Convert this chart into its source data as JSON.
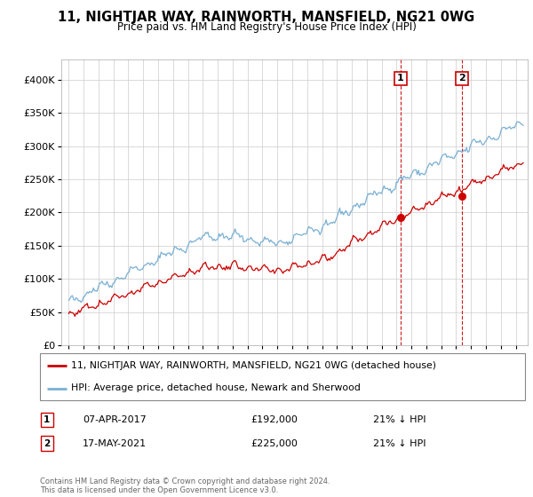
{
  "title": "11, NIGHTJAR WAY, RAINWORTH, MANSFIELD, NG21 0WG",
  "subtitle": "Price paid vs. HM Land Registry's House Price Index (HPI)",
  "yticks": [
    0,
    50000,
    100000,
    150000,
    200000,
    250000,
    300000,
    350000,
    400000
  ],
  "ylim": [
    0,
    430000
  ],
  "xlim": [
    1994.5,
    2025.8
  ],
  "year_start": 1995,
  "year_end": 2025,
  "sale1_date": 2017.27,
  "sale1_price": 192000,
  "sale2_date": 2021.38,
  "sale2_price": 225000,
  "red_color": "#cc0000",
  "blue_color": "#7ab0d4",
  "sale_marker_color": "#cc0000",
  "legend_label_red": "11, NIGHTJAR WAY, RAINWORTH, MANSFIELD, NG21 0WG (detached house)",
  "legend_label_blue": "HPI: Average price, detached house, Newark and Sherwood",
  "annotation1_label": "1",
  "annotation2_label": "2",
  "table_row1": [
    "1",
    "07-APR-2017",
    "£192,000",
    "21% ↓ HPI"
  ],
  "table_row2": [
    "2",
    "17-MAY-2021",
    "£225,000",
    "21% ↓ HPI"
  ],
  "footer": "Contains HM Land Registry data © Crown copyright and database right 2024.\nThis data is licensed under the Open Government Licence v3.0.",
  "background_color": "#ffffff",
  "grid_color": "#cccccc"
}
